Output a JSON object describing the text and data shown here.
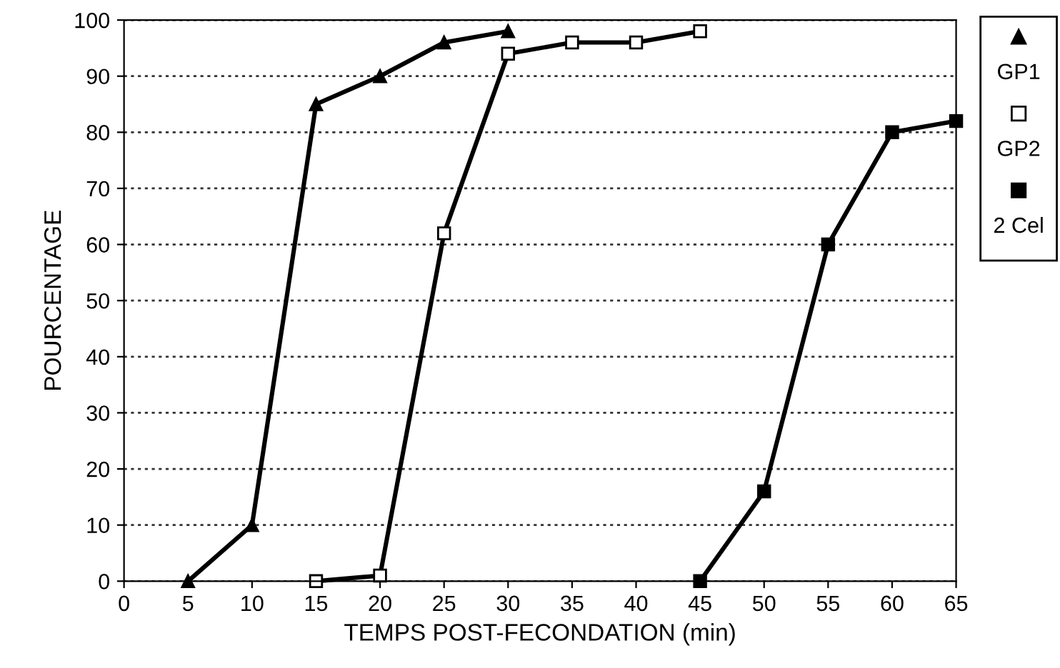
{
  "chart_data": {
    "type": "line",
    "xlabel": "TEMPS POST-FECONDATION (min)",
    "ylabel": "POURCENTAGE",
    "xlim": [
      0,
      65
    ],
    "xticks": [
      0,
      5,
      10,
      15,
      20,
      25,
      30,
      35,
      40,
      45,
      50,
      55,
      60,
      65
    ],
    "ylim": [
      0,
      100
    ],
    "yticks": [
      0,
      10,
      20,
      30,
      40,
      50,
      60,
      70,
      80,
      90,
      100
    ],
    "grid": "y",
    "legend": "right",
    "line_style": "solid",
    "series": [
      {
        "name": "GP1",
        "color": "#000000",
        "marker": "triangle",
        "x": [
          5,
          10,
          15,
          20,
          25,
          30
        ],
        "values": [
          0,
          10,
          85,
          90,
          96,
          98
        ]
      },
      {
        "name": "GP2",
        "color": "#000000",
        "marker": "square_open",
        "x": [
          15,
          20,
          25,
          30,
          35,
          40,
          45
        ],
        "values": [
          0,
          1,
          62,
          94,
          96,
          96,
          98
        ]
      },
      {
        "name": "2 Cel",
        "color": "#000000",
        "marker": "square",
        "x": [
          45,
          50,
          55,
          60,
          65
        ],
        "values": [
          0,
          16,
          60,
          80,
          82
        ]
      }
    ]
  }
}
